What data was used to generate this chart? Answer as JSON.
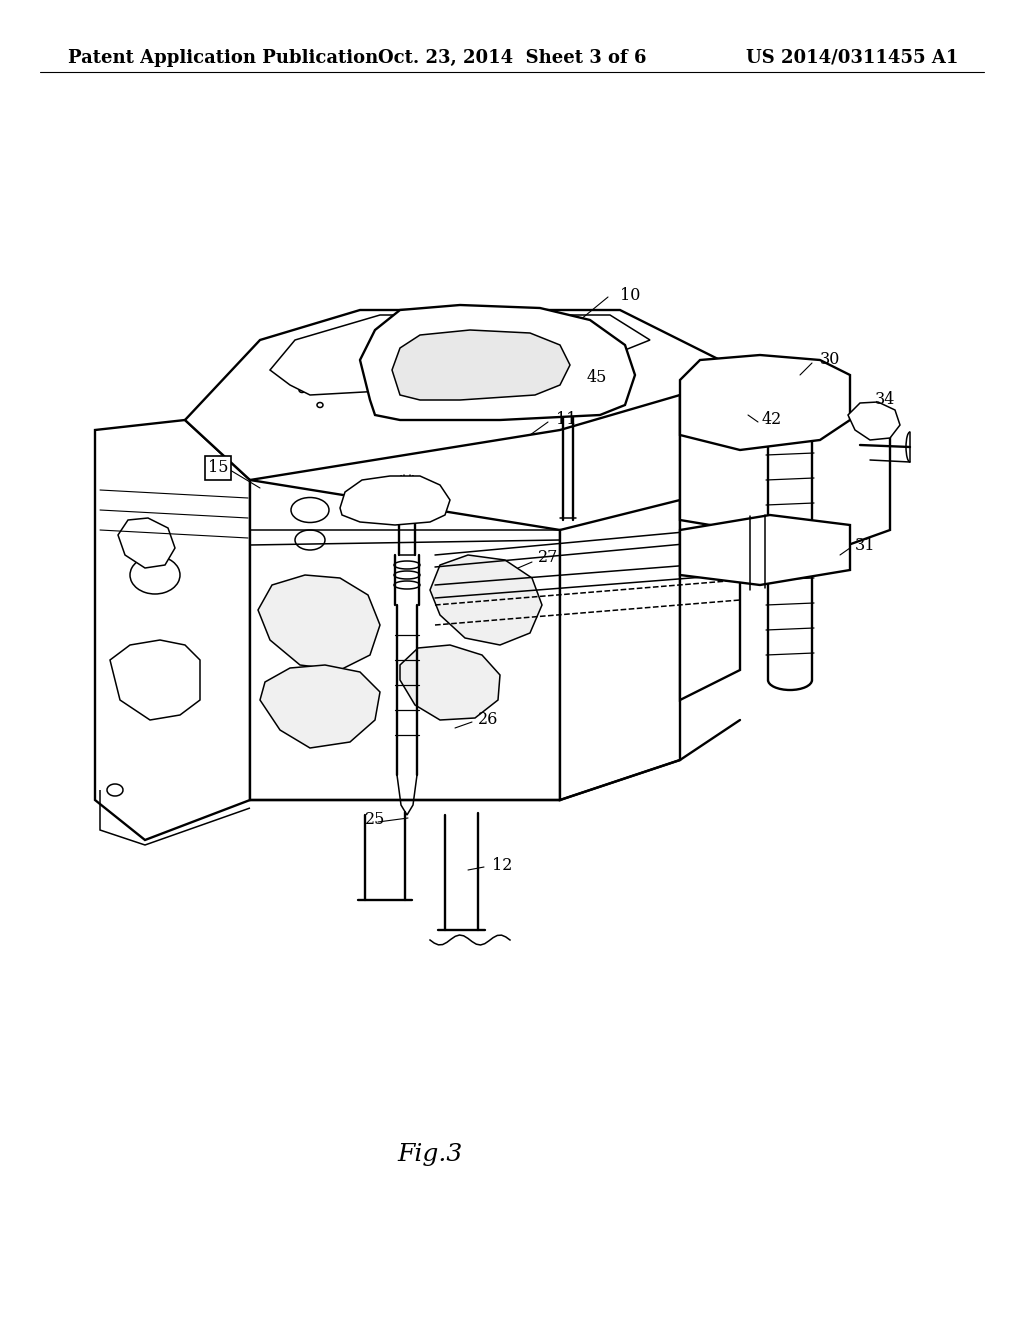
{
  "background_color": "#ffffff",
  "header_left": "Patent Application Publication",
  "header_center": "Oct. 23, 2014  Sheet 3 of 6",
  "header_right": "US 2014/0311455 A1",
  "caption": "Fig.3",
  "header_fontsize": 13,
  "caption_fontsize": 18,
  "label_fontsize": 11.5,
  "label_fontsize_sm": 9.5,
  "lw": 1.1,
  "lw2": 1.7,
  "lw3": 2.2
}
